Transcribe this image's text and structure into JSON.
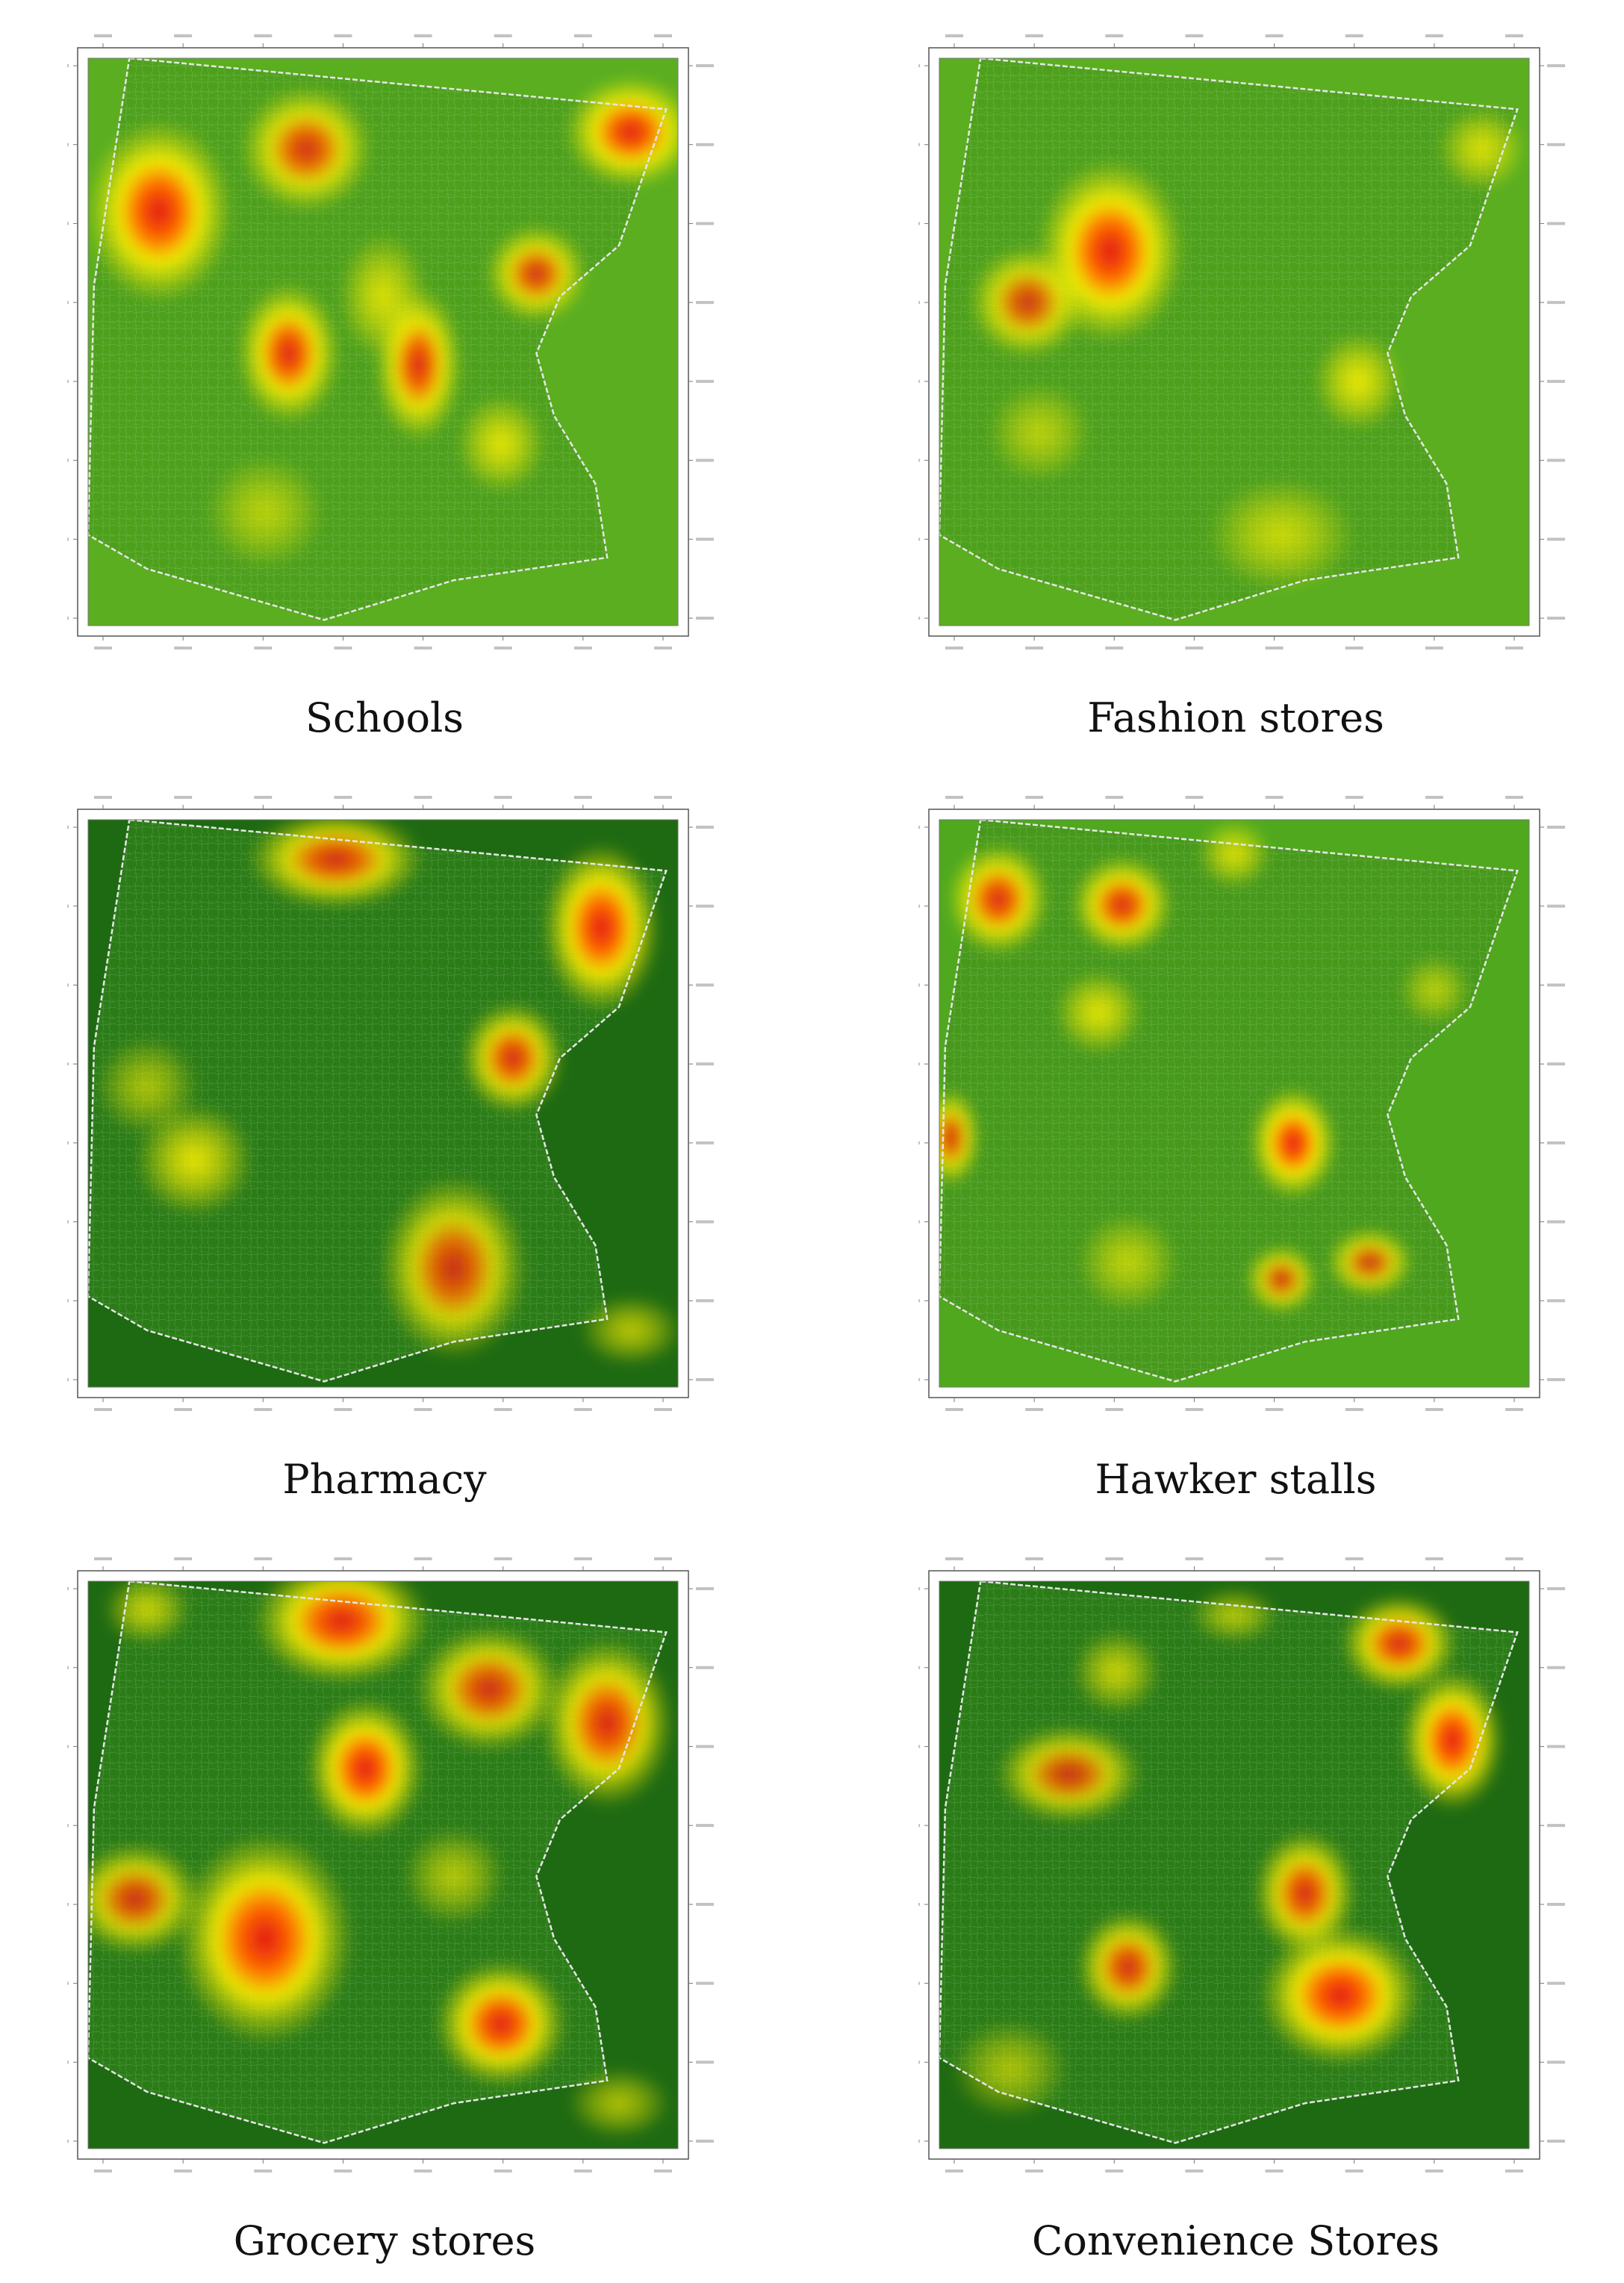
{
  "colors": {
    "green_light": "#5cae22",
    "green_dark": "#1e6a12",
    "yellow": "#fff000",
    "red": "#e01410",
    "boundary": "#e6e6e6"
  },
  "panels": [
    {
      "id": "schools",
      "caption": "Schools",
      "background": "#5aae20",
      "inside": "#4da01c",
      "hotspots": [
        {
          "u": 0.12,
          "v": 0.27,
          "rx": 0.1,
          "ry": 0.13,
          "intensity": 1.0
        },
        {
          "u": 0.37,
          "v": 0.16,
          "rx": 0.09,
          "ry": 0.09,
          "intensity": 0.7
        },
        {
          "u": 0.92,
          "v": 0.13,
          "rx": 0.09,
          "ry": 0.08,
          "intensity": 0.95
        },
        {
          "u": 0.34,
          "v": 0.52,
          "rx": 0.07,
          "ry": 0.1,
          "intensity": 0.9
        },
        {
          "u": 0.56,
          "v": 0.54,
          "rx": 0.06,
          "ry": 0.11,
          "intensity": 0.85
        },
        {
          "u": 0.5,
          "v": 0.42,
          "rx": 0.06,
          "ry": 0.09,
          "intensity": 0.45
        },
        {
          "u": 0.76,
          "v": 0.38,
          "rx": 0.07,
          "ry": 0.07,
          "intensity": 0.7
        },
        {
          "u": 0.7,
          "v": 0.68,
          "rx": 0.06,
          "ry": 0.07,
          "intensity": 0.5
        },
        {
          "u": 0.3,
          "v": 0.8,
          "rx": 0.08,
          "ry": 0.08,
          "intensity": 0.25
        }
      ]
    },
    {
      "id": "fashion-stores",
      "caption": "Fashion stores",
      "background": "#5aae20",
      "inside": "#4da01c",
      "hotspots": [
        {
          "u": 0.29,
          "v": 0.34,
          "rx": 0.1,
          "ry": 0.13,
          "intensity": 1.0
        },
        {
          "u": 0.15,
          "v": 0.43,
          "rx": 0.08,
          "ry": 0.08,
          "intensity": 0.6
        },
        {
          "u": 0.92,
          "v": 0.16,
          "rx": 0.06,
          "ry": 0.06,
          "intensity": 0.45
        },
        {
          "u": 0.71,
          "v": 0.57,
          "rx": 0.06,
          "ry": 0.07,
          "intensity": 0.55
        },
        {
          "u": 0.58,
          "v": 0.84,
          "rx": 0.1,
          "ry": 0.08,
          "intensity": 0.35
        },
        {
          "u": 0.17,
          "v": 0.66,
          "rx": 0.07,
          "ry": 0.07,
          "intensity": 0.25
        }
      ]
    },
    {
      "id": "pharmacy",
      "caption": "Pharmacy",
      "background": "#1e6a12",
      "inside": "#2a7c17",
      "hotspots": [
        {
          "u": 0.42,
          "v": 0.07,
          "rx": 0.12,
          "ry": 0.07,
          "intensity": 0.75
        },
        {
          "u": 0.87,
          "v": 0.19,
          "rx": 0.08,
          "ry": 0.12,
          "intensity": 1.0
        },
        {
          "u": 0.72,
          "v": 0.42,
          "rx": 0.07,
          "ry": 0.08,
          "intensity": 0.8
        },
        {
          "u": 0.18,
          "v": 0.6,
          "rx": 0.08,
          "ry": 0.08,
          "intensity": 0.55
        },
        {
          "u": 0.62,
          "v": 0.79,
          "rx": 0.1,
          "ry": 0.13,
          "intensity": 0.65
        },
        {
          "u": 0.1,
          "v": 0.47,
          "rx": 0.07,
          "ry": 0.07,
          "intensity": 0.25
        },
        {
          "u": 0.92,
          "v": 0.9,
          "rx": 0.07,
          "ry": 0.05,
          "intensity": 0.35
        }
      ]
    },
    {
      "id": "hawker-stalls",
      "caption": "Hawker stalls",
      "background": "#4fa81e",
      "inside": "#46991b",
      "hotspots": [
        {
          "u": 0.1,
          "v": 0.14,
          "rx": 0.07,
          "ry": 0.08,
          "intensity": 0.85
        },
        {
          "u": 0.31,
          "v": 0.15,
          "rx": 0.07,
          "ry": 0.07,
          "intensity": 0.85
        },
        {
          "u": 0.5,
          "v": 0.06,
          "rx": 0.05,
          "ry": 0.05,
          "intensity": 0.45
        },
        {
          "u": 0.27,
          "v": 0.34,
          "rx": 0.06,
          "ry": 0.06,
          "intensity": 0.5
        },
        {
          "u": 0.6,
          "v": 0.57,
          "rx": 0.06,
          "ry": 0.08,
          "intensity": 1.0
        },
        {
          "u": 0.58,
          "v": 0.81,
          "rx": 0.05,
          "ry": 0.05,
          "intensity": 0.6
        },
        {
          "u": 0.73,
          "v": 0.78,
          "rx": 0.06,
          "ry": 0.05,
          "intensity": 0.6
        },
        {
          "u": 0.02,
          "v": 0.56,
          "rx": 0.04,
          "ry": 0.07,
          "intensity": 0.7
        },
        {
          "u": 0.32,
          "v": 0.78,
          "rx": 0.07,
          "ry": 0.07,
          "intensity": 0.3
        },
        {
          "u": 0.84,
          "v": 0.3,
          "rx": 0.05,
          "ry": 0.05,
          "intensity": 0.25
        }
      ]
    },
    {
      "id": "grocery-stores",
      "caption": "Grocery stores",
      "background": "#1e6a12",
      "inside": "#2a7c17",
      "hotspots": [
        {
          "u": 0.43,
          "v": 0.07,
          "rx": 0.12,
          "ry": 0.09,
          "intensity": 0.95
        },
        {
          "u": 0.1,
          "v": 0.05,
          "rx": 0.06,
          "ry": 0.05,
          "intensity": 0.4
        },
        {
          "u": 0.68,
          "v": 0.19,
          "rx": 0.1,
          "ry": 0.09,
          "intensity": 0.7
        },
        {
          "u": 0.88,
          "v": 0.25,
          "rx": 0.09,
          "ry": 0.12,
          "intensity": 0.85
        },
        {
          "u": 0.47,
          "v": 0.33,
          "rx": 0.08,
          "ry": 0.1,
          "intensity": 1.0
        },
        {
          "u": 0.08,
          "v": 0.56,
          "rx": 0.09,
          "ry": 0.08,
          "intensity": 0.65
        },
        {
          "u": 0.3,
          "v": 0.63,
          "rx": 0.12,
          "ry": 0.15,
          "intensity": 1.0
        },
        {
          "u": 0.7,
          "v": 0.78,
          "rx": 0.09,
          "ry": 0.09,
          "intensity": 0.95
        },
        {
          "u": 0.62,
          "v": 0.52,
          "rx": 0.07,
          "ry": 0.07,
          "intensity": 0.3
        },
        {
          "u": 0.9,
          "v": 0.92,
          "rx": 0.07,
          "ry": 0.05,
          "intensity": 0.3
        }
      ]
    },
    {
      "id": "convenience-stores",
      "caption": "Convenience Stores",
      "background": "#1e6a12",
      "inside": "#2a7c17",
      "hotspots": [
        {
          "u": 0.78,
          "v": 0.11,
          "rx": 0.08,
          "ry": 0.07,
          "intensity": 0.85
        },
        {
          "u": 0.87,
          "v": 0.28,
          "rx": 0.07,
          "ry": 0.1,
          "intensity": 1.0
        },
        {
          "u": 0.3,
          "v": 0.16,
          "rx": 0.06,
          "ry": 0.06,
          "intensity": 0.4
        },
        {
          "u": 0.22,
          "v": 0.34,
          "rx": 0.1,
          "ry": 0.07,
          "intensity": 0.6
        },
        {
          "u": 0.62,
          "v": 0.55,
          "rx": 0.07,
          "ry": 0.09,
          "intensity": 0.8
        },
        {
          "u": 0.68,
          "v": 0.73,
          "rx": 0.11,
          "ry": 0.1,
          "intensity": 1.0
        },
        {
          "u": 0.32,
          "v": 0.68,
          "rx": 0.07,
          "ry": 0.08,
          "intensity": 0.75
        },
        {
          "u": 0.5,
          "v": 0.06,
          "rx": 0.06,
          "ry": 0.04,
          "intensity": 0.3
        },
        {
          "u": 0.12,
          "v": 0.86,
          "rx": 0.08,
          "ry": 0.07,
          "intensity": 0.25
        }
      ]
    }
  ]
}
